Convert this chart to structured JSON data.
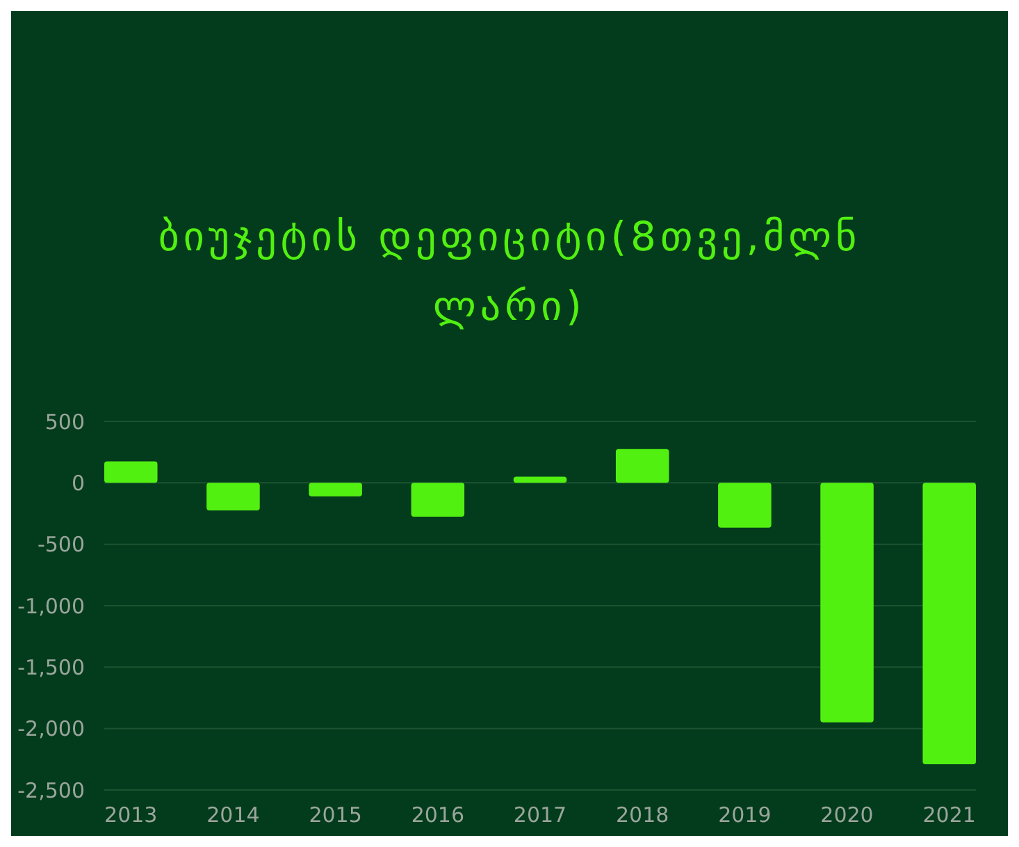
{
  "chart_data": {
    "type": "bar",
    "title": "ბიუჯეტის დეფიციტი(8თვე,მლნ ლარი)",
    "categories": [
      "2013",
      "2014",
      "2015",
      "2016",
      "2017",
      "2018",
      "2019",
      "2020",
      "2021"
    ],
    "values": [
      175,
      -225,
      -110,
      -275,
      50,
      275,
      -365,
      -1950,
      -2290
    ],
    "color": "#52f011",
    "ylim": [
      -2500,
      500
    ],
    "yticks": [
      {
        "value": 500,
        "label": "500"
      },
      {
        "value": 0,
        "label": "0"
      },
      {
        "value": -500,
        "label": "-500"
      },
      {
        "value": -1000,
        "label": "-1,000"
      },
      {
        "value": -1500,
        "label": "-1,500"
      },
      {
        "value": -2000,
        "label": "-2,000"
      },
      {
        "value": -2500,
        "label": "-2,500"
      }
    ],
    "grid": "y"
  }
}
